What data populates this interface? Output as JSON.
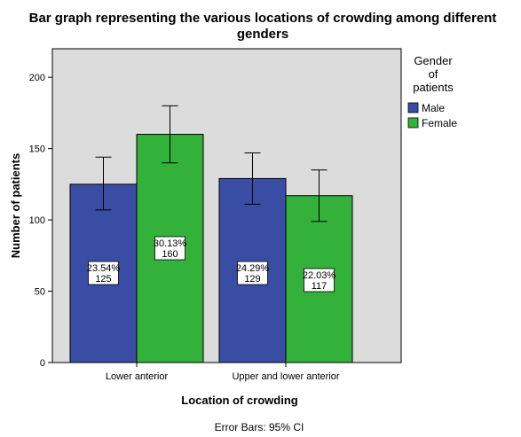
{
  "chart_data": {
    "type": "bar",
    "title_lines": [
      "Bar graph representing the various locations of crowding among different",
      "genders"
    ],
    "xlabel": "Location of crowding",
    "ylabel": "Number of patients",
    "categories": [
      "Lower anterior",
      "Upper and lower anterior"
    ],
    "series": [
      {
        "name": "Male",
        "color": "#3a4da5",
        "values": [
          125,
          129
        ],
        "ci_low": [
          107,
          111
        ],
        "ci_high": [
          144,
          147
        ],
        "percent_labels": [
          "23.54%",
          "24.29%"
        ],
        "count_labels": [
          "125",
          "129"
        ]
      },
      {
        "name": "Female",
        "color": "#33b13a",
        "values": [
          160,
          117
        ],
        "ci_low": [
          140,
          99
        ],
        "ci_high": [
          180,
          135
        ],
        "percent_labels": [
          "30.13%",
          "22.03%"
        ],
        "count_labels": [
          "160",
          "117"
        ]
      }
    ],
    "ylim": [
      0,
      220
    ],
    "yticks": [
      0,
      50,
      100,
      150,
      200
    ],
    "legend_title_lines": [
      "Gender",
      "of",
      "patients"
    ],
    "legend_position": "right",
    "plot_background": "#dcdcdc",
    "grid": false,
    "footnote": "Error Bars: 95% CI"
  }
}
